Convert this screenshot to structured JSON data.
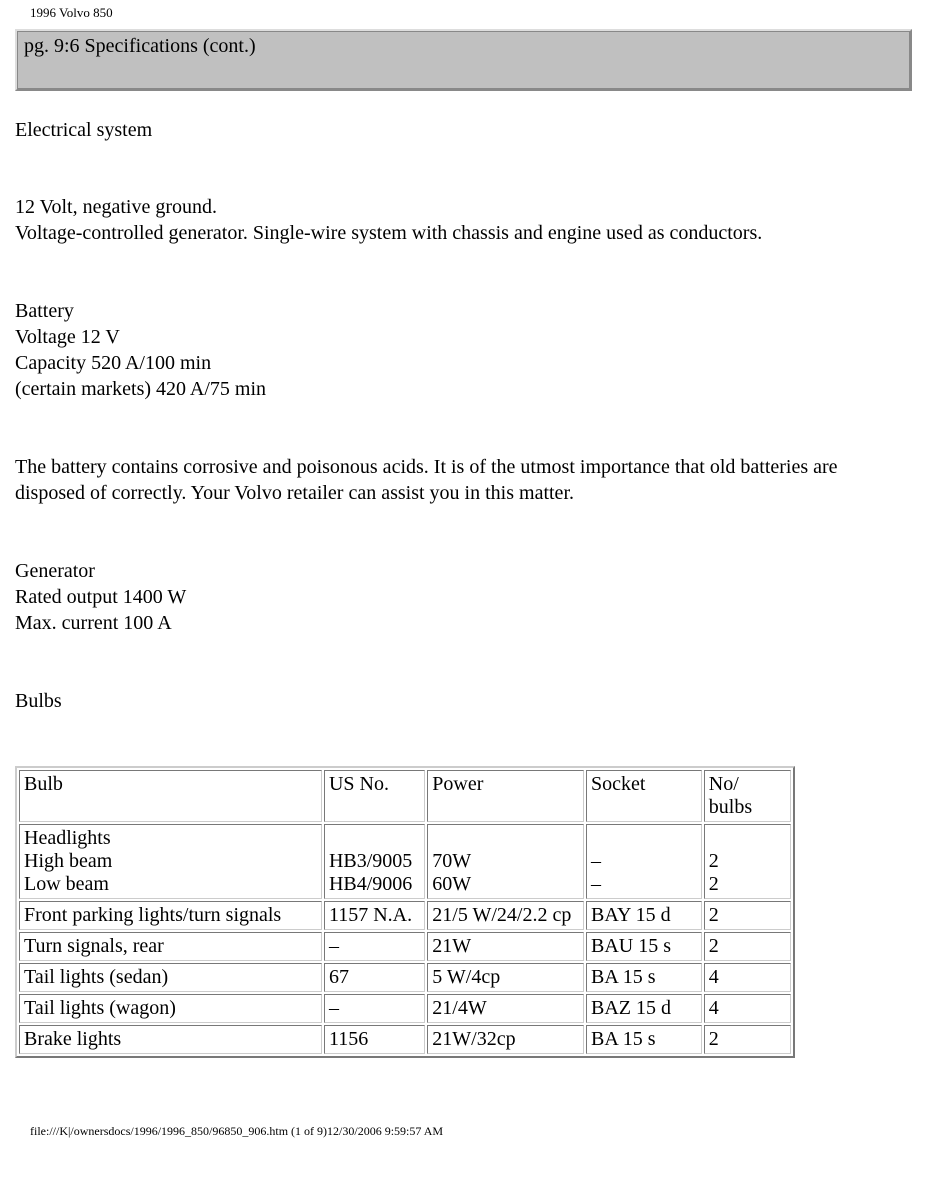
{
  "title_small": "1996 Volvo 850",
  "header_text": "pg. 9:6 Specifications (cont.)",
  "section_heading": "Electrical system",
  "para1": {
    "l1": "12 Volt, negative ground.",
    "l2": "Voltage-controlled generator. Single-wire system with chassis and engine used as conductors."
  },
  "para2": {
    "l1": "Battery",
    "l2": "Voltage 12 V",
    "l3": "Capacity 520 A/100 min",
    "l4": "(certain markets) 420 A/75 min"
  },
  "para3": "The battery contains corrosive and poisonous acids. It is of the utmost importance that old batteries are disposed of correctly. Your Volvo retailer can assist you in this matter.",
  "para4": {
    "l1": "Generator",
    "l2": "Rated output 1400 W",
    "l3": "Max. current 100 A"
  },
  "bulbs_heading": "Bulbs",
  "table": {
    "headers": [
      "Bulb",
      "US No.",
      "Power",
      "Socket",
      "No/\nbulbs"
    ],
    "rows": [
      [
        "Headlights\nHigh beam\nLow beam",
        "\nHB3/9005\nHB4/9006",
        "\n70W\n60W",
        "\n–\n–",
        "\n2\n2"
      ],
      [
        "Front parking lights/turn signals",
        "1157 N.A.",
        "21/5 W/24/2.2 cp",
        "BAY 15 d",
        "2"
      ],
      [
        "Turn signals, rear",
        "–",
        "21W",
        "BAU 15 s",
        "2"
      ],
      [
        "Tail lights (sedan)",
        "67",
        "5 W/4cp",
        "BA 15 s",
        "4"
      ],
      [
        "Tail lights (wagon)",
        "–",
        "21/4W",
        "BAZ 15 d",
        "4"
      ],
      [
        "Brake lights",
        "1156",
        "21W/32cp",
        "BA 15 s",
        "2"
      ]
    ]
  },
  "footer_line": "file:///K|/ownersdocs/1996/1996_850/96850_906.htm (1 of 9)12/30/2006 9:59:57 AM"
}
